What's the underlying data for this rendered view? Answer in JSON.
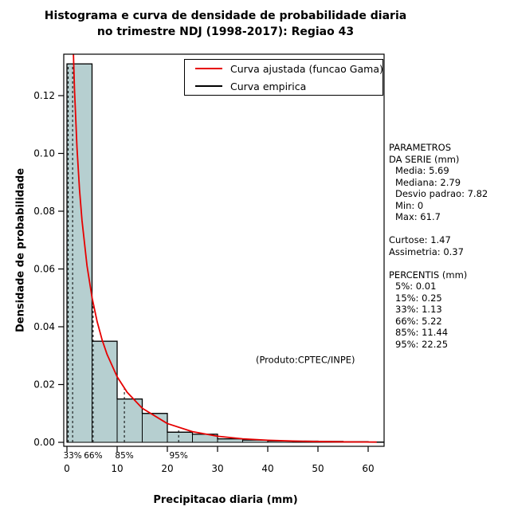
{
  "page": {
    "title_line1": "Histograma e curva de densidade de probabilidade diaria",
    "title_line2": "no trimestre NDJ (1998-2017): Regiao 43"
  },
  "legend": {
    "items": [
      {
        "label": "Curva ajustada (funcao Gama)",
        "color": "#e60000"
      },
      {
        "label": "Curva empirica",
        "color": "#000000"
      }
    ]
  },
  "stats_panel": {
    "lines": [
      {
        "text": "PARAMETROS",
        "indent": 0
      },
      {
        "text": "DA SERIE (mm)",
        "indent": 0
      },
      {
        "text": "Media: 5.69",
        "indent": 1
      },
      {
        "text": "Mediana: 2.79",
        "indent": 1
      },
      {
        "text": "Desvio padrao: 7.82",
        "indent": 1
      },
      {
        "text": "Min: 0",
        "indent": 1
      },
      {
        "text": "Max: 61.7",
        "indent": 1
      },
      {
        "text": "",
        "indent": 0
      },
      {
        "text": "Curtose: 1.47",
        "indent": 0
      },
      {
        "text": "Assimetria: 0.37",
        "indent": 0
      },
      {
        "text": "",
        "indent": 0
      },
      {
        "text": "PERCENTIS (mm)",
        "indent": 0
      },
      {
        "text": "5%: 0.01",
        "indent": 1
      },
      {
        "text": "15%: 0.25",
        "indent": 1
      },
      {
        "text": "33%: 1.13",
        "indent": 1
      },
      {
        "text": "66%: 5.22",
        "indent": 1
      },
      {
        "text": "85%: 11.44",
        "indent": 1
      },
      {
        "text": "95%: 22.25",
        "indent": 1
      }
    ]
  },
  "chart_data": {
    "type": "bar",
    "subtype": "histogram_with_fitted_density",
    "title": "Histograma e curva de densidade de probabilidade diaria",
    "subtitle": "no trimestre NDJ (1998-2017): Regiao 43",
    "xlabel": "Precipitacao diaria (mm)",
    "ylabel": "Densidade de probabilidade",
    "xlim": [
      -2.5,
      64.5
    ],
    "ylim": [
      -0.0047,
      0.1343
    ],
    "grid": false,
    "legend_position": "top-right-inside",
    "x_ticks": [
      {
        "v": 0,
        "label": "0"
      },
      {
        "v": 10,
        "label": "10"
      },
      {
        "v": 20,
        "label": "20"
      },
      {
        "v": 30,
        "label": "30"
      },
      {
        "v": 40,
        "label": "40"
      },
      {
        "v": 50,
        "label": "50"
      },
      {
        "v": 60,
        "label": "60"
      }
    ],
    "y_ticks": [
      {
        "v": 0,
        "label": "0.00"
      },
      {
        "v": 0.02,
        "label": "0.02"
      },
      {
        "v": 0.04,
        "label": "0.04"
      },
      {
        "v": 0.06,
        "label": "0.06"
      },
      {
        "v": 0.08,
        "label": "0.08"
      },
      {
        "v": 0.1,
        "label": "0.10"
      },
      {
        "v": 0.12,
        "label": "0.12"
      }
    ],
    "bin_width": 5,
    "histogram": {
      "bin_start": 0,
      "densities": [
        0.131,
        0.035,
        0.015,
        0.01,
        0.0035,
        0.0028,
        0.0012,
        0.0008,
        0.0005,
        0.0004,
        0.0003,
        0.0002,
        0.0001
      ]
    },
    "gamma_curve": {
      "x": [
        0.3,
        0.5,
        0.7,
        1,
        1.25,
        1.5,
        2,
        2.5,
        3,
        4,
        5,
        6,
        7,
        8,
        10,
        12,
        15,
        20,
        25,
        30,
        35,
        40,
        45,
        50,
        55,
        60,
        61.7
      ],
      "y": [
        0.2913,
        0.2249,
        0.1884,
        0.155,
        0.137,
        0.1223,
        0.102,
        0.0876,
        0.0768,
        0.0611,
        0.0501,
        0.0419,
        0.0355,
        0.0304,
        0.0227,
        0.0173,
        0.0118,
        0.0065,
        0.0037,
        0.0021,
        0.0012,
        0.00073,
        0.00043,
        0.00026,
        0.00016,
        0.0001,
        9e-05
      ],
      "color": "#e60000"
    },
    "empirical_color": "#000000",
    "bar_fill": "#b6cfd0",
    "bar_edge": "#000000",
    "percentile_lines": [
      {
        "x": 0.01,
        "height": 0.131,
        "label": ""
      },
      {
        "x": 0.25,
        "height": 0.131,
        "label": ""
      },
      {
        "x": 1.13,
        "height": 0.131,
        "label": "33%"
      },
      {
        "x": 5.22,
        "height": 0.048,
        "label": "66%"
      },
      {
        "x": 11.44,
        "height": 0.019,
        "label": "85%"
      },
      {
        "x": 22.25,
        "height": 0.005,
        "label": "95%"
      }
    ],
    "annotation": {
      "text": "(Produto:CPTEC/INPE)",
      "x": 47.5,
      "y": 0.0285
    }
  }
}
